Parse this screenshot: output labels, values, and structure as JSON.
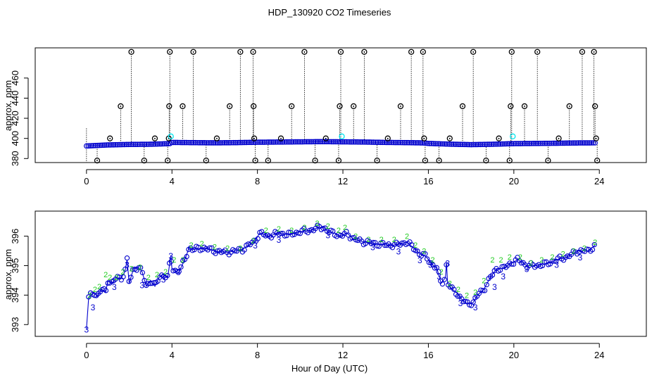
{
  "title": "HDP_130920  CO2 Timeseries",
  "xlabel": "Hour of Day (UTC)",
  "colors": {
    "outlier": "#000000",
    "flag_cyan": "#00e5ee",
    "main": "#0000cd",
    "alt": "#22cc22",
    "line": "#0000cd"
  },
  "chart_data": [
    {
      "type": "scatter",
      "title": "HDP_130920  CO2 Timeseries",
      "xlabel": "",
      "ylabel": "approx. ppm",
      "xlim": [
        -2.4,
        26.2
      ],
      "ylim": [
        376,
        490
      ],
      "xticks": [
        0,
        4,
        8,
        12,
        16,
        20,
        24
      ],
      "yticks": [
        380,
        400,
        420,
        440,
        460
      ],
      "grid": false,
      "baseline": [
        [
          0,
          392.5
        ],
        [
          0.3,
          392.8
        ],
        [
          1,
          393.5
        ],
        [
          2,
          394
        ],
        [
          3,
          394.2
        ],
        [
          3.9,
          394.8
        ],
        [
          4,
          396
        ],
        [
          5,
          395.8
        ],
        [
          6,
          395.6
        ],
        [
          7,
          395.8
        ],
        [
          8,
          396.2
        ],
        [
          9,
          396.4
        ],
        [
          10,
          396.6
        ],
        [
          11,
          396.8
        ],
        [
          12,
          396.6
        ],
        [
          13,
          396.4
        ],
        [
          14,
          396
        ],
        [
          15,
          395.8
        ],
        [
          15.8,
          395.5
        ],
        [
          16,
          395
        ],
        [
          17,
          394.3
        ],
        [
          18,
          393.8
        ],
        [
          19,
          394.2
        ],
        [
          20,
          394.8
        ],
        [
          21,
          395
        ],
        [
          22,
          395.2
        ],
        [
          23,
          395.5
        ],
        [
          23.8,
          395.6
        ]
      ],
      "outliers": [
        [
          0.5,
          378
        ],
        [
          1.1,
          400
        ],
        [
          1.6,
          432
        ],
        [
          2.1,
          486
        ],
        [
          2.7,
          378
        ],
        [
          3.2,
          400
        ],
        [
          3.8,
          378
        ],
        [
          3.85,
          400
        ],
        [
          3.87,
          432
        ],
        [
          3.9,
          486
        ],
        [
          4.5,
          432
        ],
        [
          5.0,
          486
        ],
        [
          5.6,
          378
        ],
        [
          6.1,
          400
        ],
        [
          6.7,
          432
        ],
        [
          7.2,
          486
        ],
        [
          7.8,
          486
        ],
        [
          7.82,
          432
        ],
        [
          7.85,
          400
        ],
        [
          7.9,
          378
        ],
        [
          8.5,
          378
        ],
        [
          9.1,
          400
        ],
        [
          9.6,
          432
        ],
        [
          10.2,
          486
        ],
        [
          10.7,
          378
        ],
        [
          11.2,
          400
        ],
        [
          11.8,
          378
        ],
        [
          11.85,
          432
        ],
        [
          11.9,
          486
        ],
        [
          12.5,
          432
        ],
        [
          13.0,
          486
        ],
        [
          13.6,
          378
        ],
        [
          14.1,
          400
        ],
        [
          14.7,
          432
        ],
        [
          15.2,
          486
        ],
        [
          15.75,
          486
        ],
        [
          15.8,
          400
        ],
        [
          15.85,
          378
        ],
        [
          16.5,
          378
        ],
        [
          17.0,
          400
        ],
        [
          17.6,
          432
        ],
        [
          18.1,
          486
        ],
        [
          18.7,
          378
        ],
        [
          19.3,
          400
        ],
        [
          19.8,
          378
        ],
        [
          19.85,
          432
        ],
        [
          19.9,
          486
        ],
        [
          20.5,
          432
        ],
        [
          21.1,
          486
        ],
        [
          21.6,
          378
        ],
        [
          22.1,
          400
        ],
        [
          22.6,
          432
        ],
        [
          23.2,
          486
        ],
        [
          23.75,
          486
        ],
        [
          23.8,
          432
        ],
        [
          23.85,
          400
        ],
        [
          23.9,
          378
        ]
      ],
      "flagged": [
        [
          3.95,
          402
        ],
        [
          11.95,
          402
        ],
        [
          19.95,
          402
        ]
      ]
    },
    {
      "type": "line",
      "ylabel": "approx. ppm",
      "xlim": [
        -2.4,
        26.2
      ],
      "ylim": [
        392.6,
        396.85
      ],
      "xticks": [
        0,
        4,
        8,
        12,
        16,
        20,
        24
      ],
      "yticks": [
        393,
        394,
        395,
        396
      ],
      "grid": false,
      "marker_labels": [
        "3",
        "2"
      ],
      "series": [
        {
          "values": [
            [
              0,
              392.85
            ],
            [
              0.1,
              393.9
            ],
            [
              0.2,
              394.0
            ],
            [
              0.35,
              394.1
            ],
            [
              0.5,
              393.95
            ],
            [
              0.7,
              394.2
            ],
            [
              0.9,
              394.1
            ],
            [
              1.0,
              394.5
            ],
            [
              1.2,
              394.4
            ],
            [
              1.4,
              394.6
            ],
            [
              1.6,
              394.55
            ],
            [
              1.8,
              394.8
            ],
            [
              1.9,
              395.2
            ],
            [
              2.0,
              394.4
            ],
            [
              2.2,
              394.9
            ],
            [
              2.4,
              394.95
            ],
            [
              2.6,
              394.8
            ],
            [
              2.8,
              394.3
            ],
            [
              3.0,
              394.5
            ],
            [
              3.2,
              394.3
            ],
            [
              3.4,
              394.6
            ],
            [
              3.6,
              394.7
            ],
            [
              3.8,
              394.6
            ],
            [
              3.95,
              395.35
            ],
            [
              4.0,
              394.9
            ],
            [
              4.2,
              394.8
            ],
            [
              4.4,
              394.9
            ],
            [
              4.6,
              395.2
            ],
            [
              4.8,
              395.6
            ],
            [
              5.0,
              395.55
            ],
            [
              5.5,
              395.6
            ],
            [
              6.0,
              395.5
            ],
            [
              6.5,
              395.45
            ],
            [
              7.0,
              395.5
            ],
            [
              7.3,
              395.55
            ],
            [
              7.6,
              395.7
            ],
            [
              7.9,
              395.85
            ],
            [
              8.1,
              396.1
            ],
            [
              8.5,
              396.0
            ],
            [
              9.0,
              396.1
            ],
            [
              9.5,
              396.05
            ],
            [
              10.0,
              396.15
            ],
            [
              10.5,
              396.2
            ],
            [
              10.9,
              396.3
            ],
            [
              11.1,
              396.3
            ],
            [
              11.3,
              396.15
            ],
            [
              11.6,
              396.1
            ],
            [
              11.9,
              396.0
            ],
            [
              12.2,
              396.1
            ],
            [
              12.5,
              395.9
            ],
            [
              13.0,
              395.8
            ],
            [
              13.5,
              395.75
            ],
            [
              14.0,
              395.7
            ],
            [
              14.5,
              395.7
            ],
            [
              15.0,
              395.8
            ],
            [
              15.3,
              395.6
            ],
            [
              15.6,
              395.4
            ],
            [
              15.9,
              395.3
            ],
            [
              16.1,
              395.1
            ],
            [
              16.4,
              394.9
            ],
            [
              16.6,
              394.4
            ],
            [
              16.8,
              394.6
            ],
            [
              16.85,
              395.1
            ],
            [
              16.9,
              394.4
            ],
            [
              17.1,
              394.2
            ],
            [
              17.3,
              394.1
            ],
            [
              17.5,
              393.9
            ],
            [
              17.8,
              393.7
            ],
            [
              18.1,
              393.75
            ],
            [
              18.3,
              394.0
            ],
            [
              18.6,
              394.2
            ],
            [
              18.9,
              394.6
            ],
            [
              19.2,
              394.9
            ],
            [
              19.5,
              394.9
            ],
            [
              19.9,
              395.1
            ],
            [
              20.2,
              395.2
            ],
            [
              20.6,
              395.0
            ],
            [
              21.0,
              395.0
            ],
            [
              21.5,
              395.05
            ],
            [
              22.0,
              395.2
            ],
            [
              22.5,
              395.3
            ],
            [
              23.0,
              395.5
            ],
            [
              23.5,
              395.5
            ],
            [
              23.8,
              395.7
            ]
          ]
        },
        {
          "values": [
            [
              0.15,
              394.0
            ],
            [
              0.4,
              394.2
            ],
            [
              0.6,
              394.3
            ],
            [
              0.9,
              394.7
            ],
            [
              1.1,
              394.6
            ],
            [
              1.4,
              394.6
            ],
            [
              1.7,
              394.8
            ],
            [
              2.1,
              394.9
            ],
            [
              2.5,
              394.95
            ],
            [
              2.9,
              394.6
            ],
            [
              3.3,
              394.7
            ],
            [
              3.7,
              394.8
            ],
            [
              4.1,
              395.2
            ],
            [
              4.5,
              395.2
            ],
            [
              4.9,
              395.7
            ],
            [
              5.4,
              395.75
            ],
            [
              6.0,
              395.65
            ],
            [
              6.6,
              395.6
            ],
            [
              7.2,
              395.6
            ],
            [
              7.8,
              395.85
            ],
            [
              8.4,
              396.2
            ],
            [
              9.0,
              396.25
            ],
            [
              9.6,
              396.2
            ],
            [
              10.2,
              396.3
            ],
            [
              10.8,
              396.45
            ],
            [
              11.3,
              396.35
            ],
            [
              11.8,
              396.2
            ],
            [
              12.1,
              396.3
            ],
            [
              12.6,
              396.0
            ],
            [
              13.2,
              395.9
            ],
            [
              13.8,
              395.9
            ],
            [
              14.4,
              395.9
            ],
            [
              15.0,
              396.0
            ],
            [
              15.4,
              395.7
            ],
            [
              15.8,
              395.5
            ],
            [
              16.2,
              395.2
            ],
            [
              16.6,
              394.8
            ],
            [
              17.0,
              394.4
            ],
            [
              17.4,
              394.2
            ],
            [
              17.8,
              394.0
            ],
            [
              18.2,
              394.1
            ],
            [
              18.6,
              394.5
            ],
            [
              19.0,
              395.2
            ],
            [
              19.4,
              395.2
            ],
            [
              19.8,
              395.3
            ],
            [
              20.3,
              395.3
            ],
            [
              20.8,
              395.1
            ],
            [
              21.3,
              395.2
            ],
            [
              21.8,
              395.3
            ],
            [
              22.3,
              395.4
            ],
            [
              22.8,
              395.5
            ],
            [
              23.3,
              395.6
            ],
            [
              23.8,
              395.8
            ]
          ]
        }
      ]
    }
  ]
}
